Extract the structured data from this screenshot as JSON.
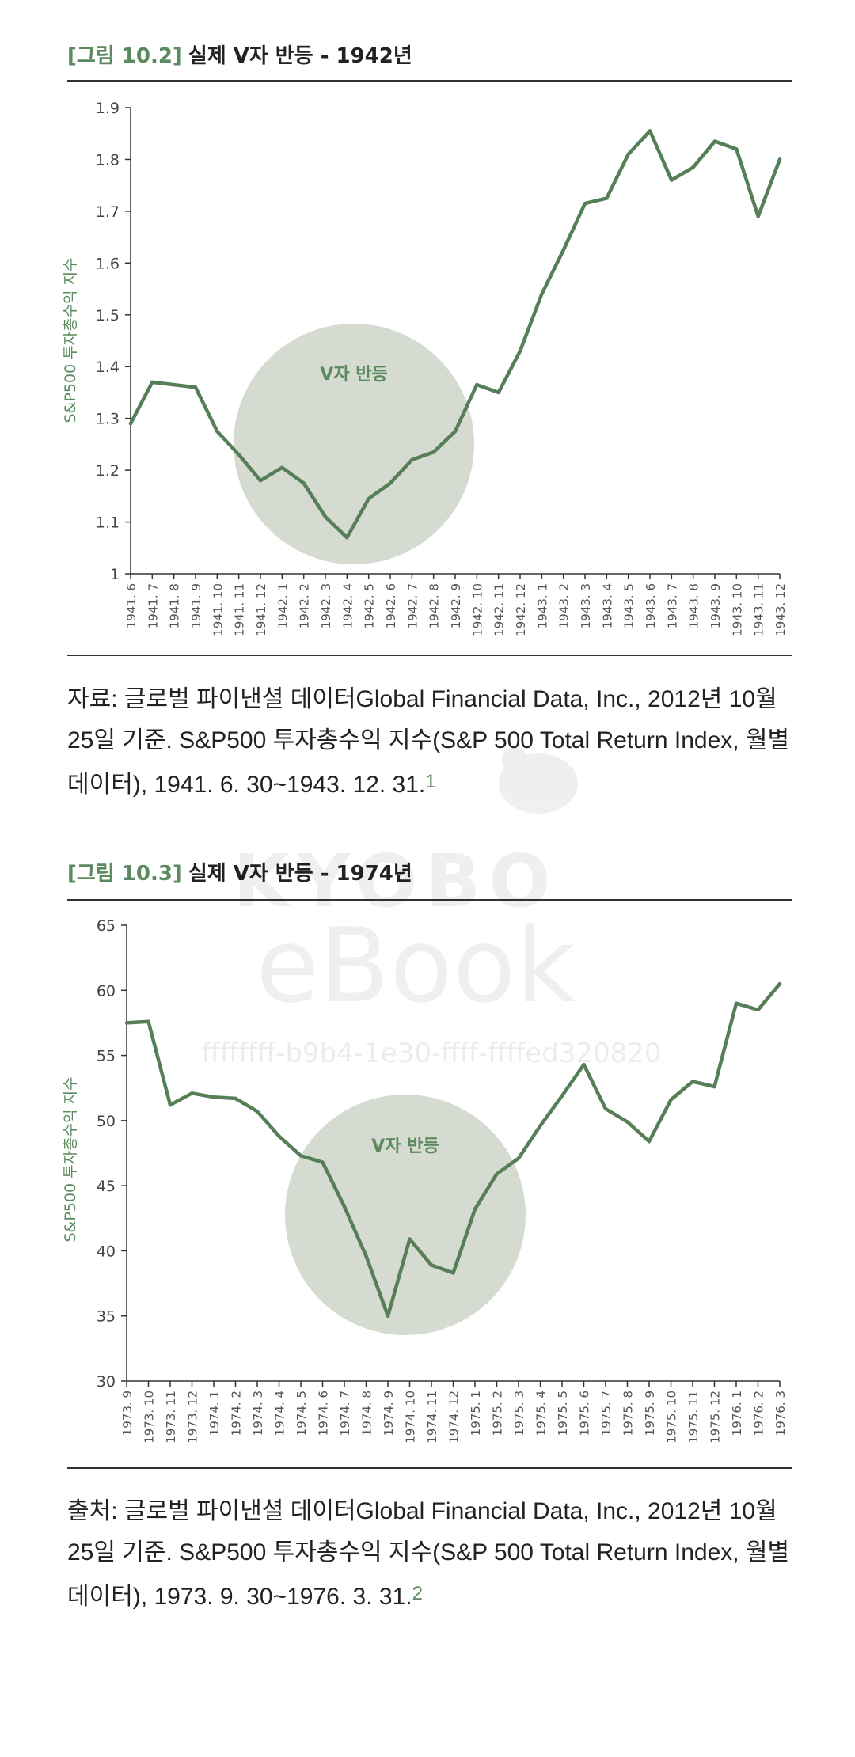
{
  "figure1": {
    "tag": "[그림 10.2]",
    "title": "실제 V자 반등 - 1942년",
    "caption": "자료: 글로벌 파이낸셜 데이터Global Financial Data, Inc., 2012년 10월 25일 기준. S&P500 투자총수익 지수(S&P 500 Total Return Index, 월별 데이터), 1941. 6. 30~1943. 12. 31.",
    "footnote": "1"
  },
  "figure2": {
    "tag": "[그림 10.3]",
    "title": "실제 V자 반등 - 1974년",
    "caption": "출처: 글로벌 파이낸셜 데이터Global Financial Data, Inc., 2012년 10월 25일 기준. S&P500 투자총수익 지수(S&P 500 Total Return Index, 월별 데이터), 1973. 9. 30~1976. 3. 31.",
    "footnote": "2"
  },
  "watermark": {
    "brand": "KYOBO",
    "product": "eBook",
    "id": "ffffffff-b9b4-1e30-ffff-ffffed320820"
  },
  "colors": {
    "line": "#567f58",
    "accent": "#5a8a5e",
    "circle": "#d5dbd1",
    "axis": "#333333"
  },
  "chart_data": [
    {
      "type": "line",
      "ylabel": "S&P500 투자총수익 지수",
      "xlabel": "",
      "ylim": [
        1,
        1.9
      ],
      "yticks": [
        "1",
        "1.1",
        "1.2",
        "1.3",
        "1.4",
        "1.5",
        "1.6",
        "1.7",
        "1.8",
        "1.9"
      ],
      "annotation": "V자 반등",
      "categories": [
        "1941. 6",
        "1941. 7",
        "1941. 8",
        "1941. 9",
        "1941. 10",
        "1941. 11",
        "1941. 12",
        "1942. 1",
        "1942. 2",
        "1942. 3",
        "1942. 4",
        "1942. 5",
        "1942. 6",
        "1942. 7",
        "1942. 8",
        "1942. 9",
        "1942. 10",
        "1942. 11",
        "1942. 12",
        "1943. 1",
        "1943. 2",
        "1943. 3",
        "1943. 4",
        "1943. 5",
        "1943. 6",
        "1943. 7",
        "1943. 8",
        "1943. 9",
        "1943. 10",
        "1943. 11",
        "1943. 12"
      ],
      "values": [
        1.29,
        1.37,
        1.365,
        1.36,
        1.275,
        1.23,
        1.18,
        1.205,
        1.175,
        1.11,
        1.07,
        1.145,
        1.175,
        1.22,
        1.235,
        1.275,
        1.365,
        1.35,
        1.43,
        1.54,
        1.625,
        1.715,
        1.725,
        1.81,
        1.855,
        1.76,
        1.785,
        1.835,
        1.82,
        1.69,
        1.8
      ]
    },
    {
      "type": "line",
      "ylabel": "S&P500 투자총수익 지수",
      "xlabel": "",
      "ylim": [
        30,
        65
      ],
      "yticks": [
        "30",
        "35",
        "40",
        "45",
        "50",
        "55",
        "60",
        "65"
      ],
      "annotation": "V자 반등",
      "categories": [
        "1973. 9",
        "1973. 10",
        "1973. 11",
        "1973. 12",
        "1974. 1",
        "1974. 2",
        "1974. 3",
        "1974. 4",
        "1974. 5",
        "1974. 6",
        "1974. 7",
        "1974. 8",
        "1974. 9",
        "1974. 10",
        "1974. 11",
        "1974. 12",
        "1975. 1",
        "1975. 2",
        "1975. 3",
        "1975. 4",
        "1975. 5",
        "1975. 6",
        "1975. 7",
        "1975. 8",
        "1975. 9",
        "1975. 10",
        "1975. 11",
        "1975. 12",
        "1976. 1",
        "1976. 2",
        "1976. 3"
      ],
      "values": [
        57.5,
        57.6,
        51.2,
        52.1,
        51.8,
        51.7,
        50.7,
        48.8,
        47.3,
        46.8,
        43.4,
        39.6,
        35.0,
        40.9,
        38.9,
        38.3,
        43.2,
        45.9,
        47.1,
        49.6,
        51.9,
        54.3,
        50.9,
        49.9,
        48.4,
        51.6,
        53.0,
        52.6,
        59.0,
        58.5,
        60.5
      ]
    }
  ]
}
